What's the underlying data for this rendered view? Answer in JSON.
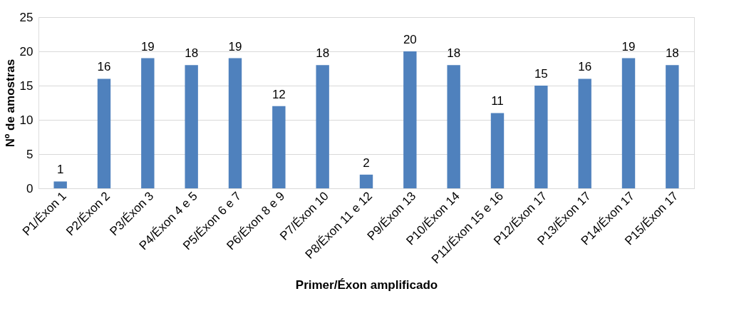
{
  "chart_data": {
    "type": "bar",
    "xlabel": "Primer/Éxon amplificado",
    "ylabel": "Nº de amostras",
    "categories": [
      "P1/Éxon 1",
      "P2/Éxon 2",
      "P3/Éxon 3",
      "P4/Éxon 4 e 5",
      "P5/Éxon 6 e 7",
      "P6/Éxon 8 e 9",
      "P7/Éxon 10",
      "P8/Éxon 11 e 12",
      "P9/Éxon 13",
      "P10/Éxon 14",
      "P11/Éxon 15 e 16",
      "P12/Éxon 17",
      "P13/Éxon 17",
      "P14/Éxon 17",
      "P15/Éxon 17"
    ],
    "values": [
      1,
      16,
      19,
      18,
      19,
      12,
      18,
      2,
      20,
      18,
      11,
      15,
      16,
      19,
      18
    ],
    "color": "#4f81bd",
    "ylim": [
      0,
      25
    ],
    "yticks": [
      0,
      5,
      10,
      15,
      20,
      25
    ],
    "grid": "y",
    "data_labels": true
  }
}
